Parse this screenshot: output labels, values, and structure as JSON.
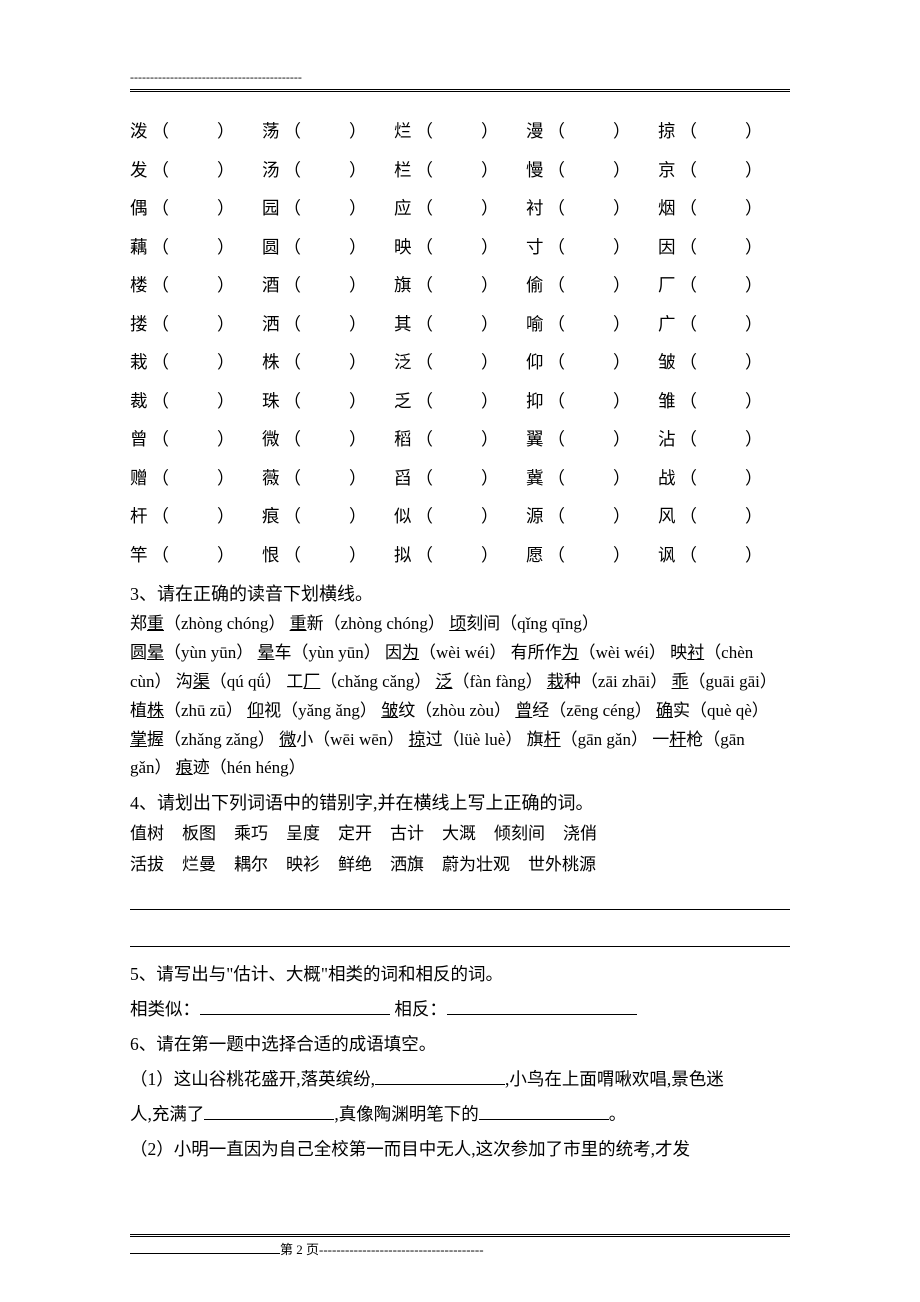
{
  "top_dashes": "-------------------------------------------",
  "char_grid": {
    "rows": [
      [
        "泼",
        "荡",
        "烂",
        "漫",
        "掠"
      ],
      [
        "发",
        "汤",
        "栏",
        "慢",
        "京"
      ],
      [
        "偶",
        "园",
        "应",
        "衬",
        "烟"
      ],
      [
        "藕",
        "圆",
        "映",
        "寸",
        "因"
      ],
      [
        "楼",
        "酒",
        "旗",
        "偷",
        "厂"
      ],
      [
        "搂",
        "洒",
        "其",
        "喻",
        "广"
      ],
      [
        "栽",
        "株",
        "泛",
        "仰",
        "皱"
      ],
      [
        "裁",
        "珠",
        "乏",
        "抑",
        "雏"
      ],
      [
        "曾",
        "微",
        "稻",
        "翼",
        "沾"
      ],
      [
        "赠",
        "薇",
        "舀",
        "冀",
        "战"
      ],
      [
        "杆",
        "痕",
        "似",
        "源",
        "风"
      ],
      [
        "竿",
        "恨",
        "拟",
        "愿",
        "讽"
      ]
    ]
  },
  "q3": {
    "title": "3、请在正确的读音下划横线。",
    "items": [
      {
        "pre": "郑",
        "u": "重",
        "post": "（zhòng chóng）"
      },
      {
        "pre": "",
        "u": "重",
        "post": "新（zhòng chóng）"
      },
      {
        "pre": "",
        "u": "顷",
        "post": "刻间（qǐng qīng）"
      },
      {
        "br": true
      },
      {
        "pre": "圆",
        "u": "晕",
        "post": "（yùn yūn） "
      },
      {
        "pre": "",
        "u": "晕",
        "post": "车（yùn yūn）"
      },
      {
        "pre": "因",
        "u": "为",
        "post": "（wèi wéi）"
      },
      {
        "pre": "有所作",
        "u": "为",
        "post": "（wèi wéi）"
      },
      {
        "pre": "映",
        "u": "衬",
        "post": "（chèn cùn）"
      },
      {
        "pre": "沟",
        "u": "渠",
        "post": "（qú qǘ）"
      },
      {
        "pre": "工",
        "u": "厂",
        "post": "（chǎng cǎng）"
      },
      {
        "pre": "",
        "u": "泛",
        "post": "（fàn fàng）"
      },
      {
        "pre": "",
        "u": "栽",
        "post": "种（zāi zhāi）"
      },
      {
        "pre": "",
        "u": "乖",
        "post": "（guāi gāi）"
      },
      {
        "pre": "植",
        "u": "株",
        "post": "（zhū zū）"
      },
      {
        "pre": "",
        "u": "仰",
        "post": "视（yǎng  ǎng）"
      },
      {
        "pre": "",
        "u": "皱",
        "post": "纹（zhòu zòu）"
      },
      {
        "pre": "",
        "u": "曾",
        "post": "经（zēng céng）"
      },
      {
        "pre": "",
        "u": "确",
        "post": "实（què qè）"
      },
      {
        "pre": "",
        "u": "掌",
        "post": "握（zhǎng zǎng）"
      },
      {
        "pre": "",
        "u": "微",
        "post": "小（wēi wēn）"
      },
      {
        "pre": "",
        "u": "掠",
        "post": "过（lüè luè）"
      },
      {
        "pre": "旗",
        "u": "杆",
        "post": "（gān gǎn）"
      },
      {
        "pre": "一",
        "u": "杆",
        "post": "枪（gān gǎn）"
      },
      {
        "pre": "",
        "u": "痕",
        "post": "迹（hén héng）"
      }
    ]
  },
  "q4": {
    "title": "4、请划出下列词语中的错别字,并在横线上写上正确的词。",
    "row1": [
      "值树",
      "板图",
      "乘巧",
      "呈度",
      "定开",
      "古计",
      "大溉",
      "倾刻间",
      "浇俏"
    ],
    "row2": [
      "活拔",
      "烂曼",
      "耦尔",
      "映衫",
      "鲜绝",
      "洒旗",
      "蔚为壮观",
      "世外桃源"
    ]
  },
  "q5": {
    "title": "5、请写出与\"估计、大概\"相类的词和相反的词。",
    "label1": "相类似：",
    "label2": "相反："
  },
  "q6": {
    "title": "6、请在第一题中选择合适的成语填空。",
    "line1a": "（1）这山谷桃花盛开,落英缤纷,",
    "line1b": ",小鸟在上面喟啾欢唱,景色迷",
    "line2a": "人,充满了",
    "line2b": ",真像陶渊明笔下的",
    "line2c": "。",
    "line3": "（2）小明一直因为自己全校第一而目中无人,这次参加了市里的统考,才发"
  },
  "footer": {
    "text": "第 2 页",
    "dashes": "--------------------------------------"
  }
}
